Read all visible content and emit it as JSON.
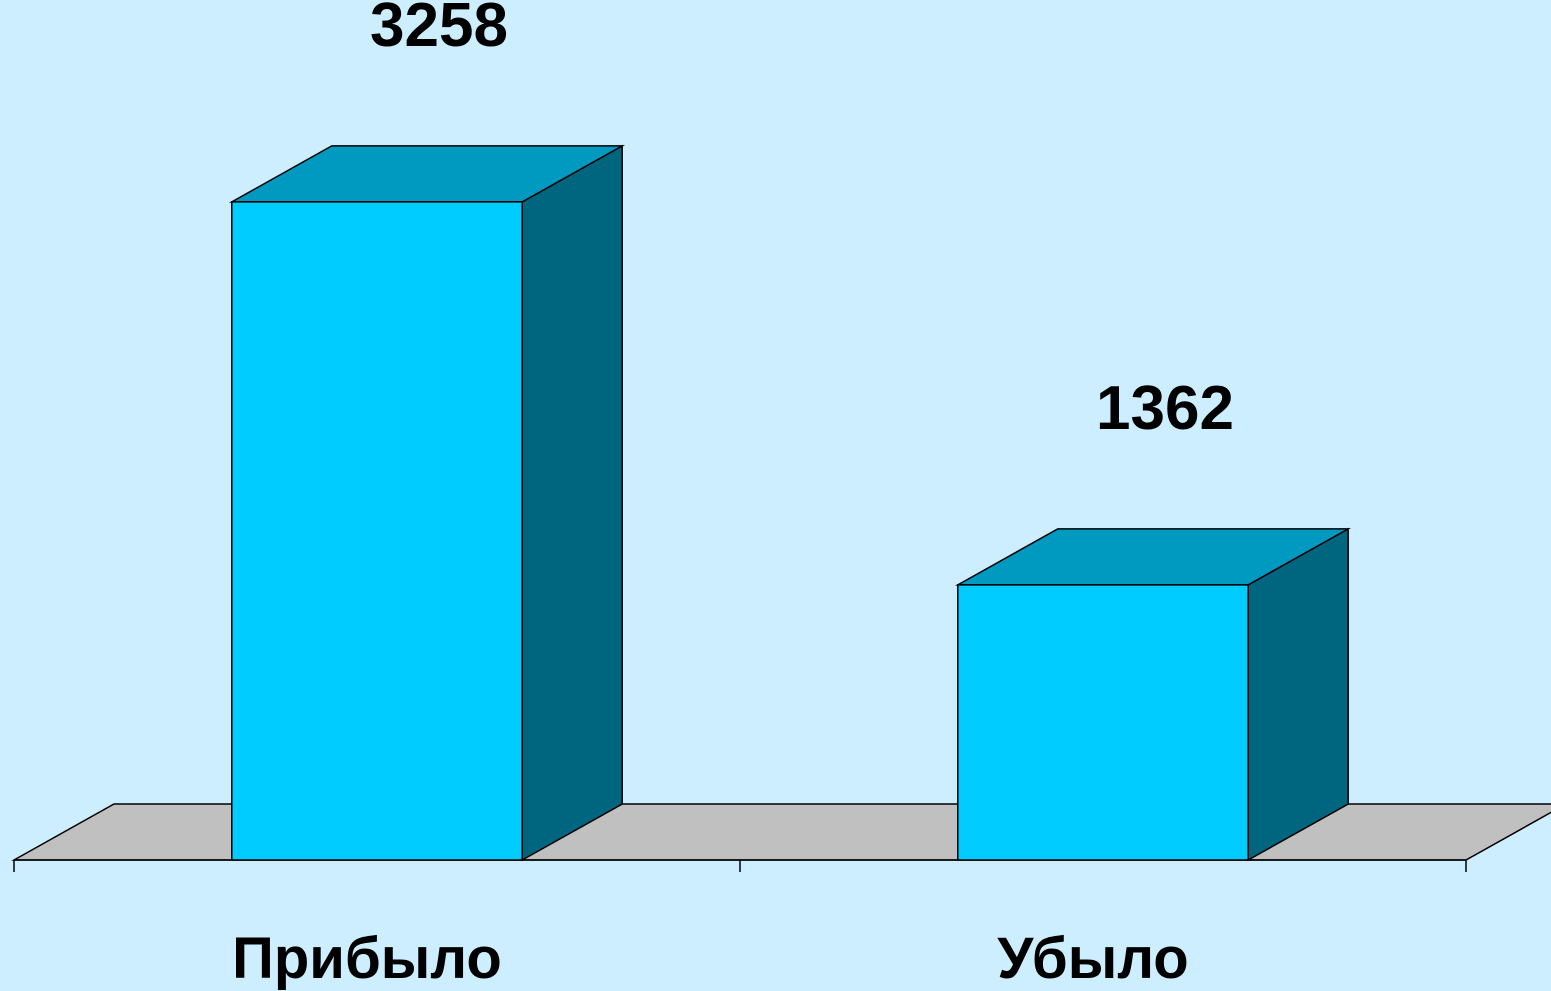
{
  "chart_data": {
    "type": "bar3d",
    "categories": [
      "Прибыло",
      "Убыло"
    ],
    "values": [
      3258,
      1362
    ],
    "ylim": [
      0,
      3500
    ],
    "color": "#00ccff",
    "top_color": "#0099c0",
    "side_color": "#006680",
    "floor_color": "#c0c0c0"
  }
}
